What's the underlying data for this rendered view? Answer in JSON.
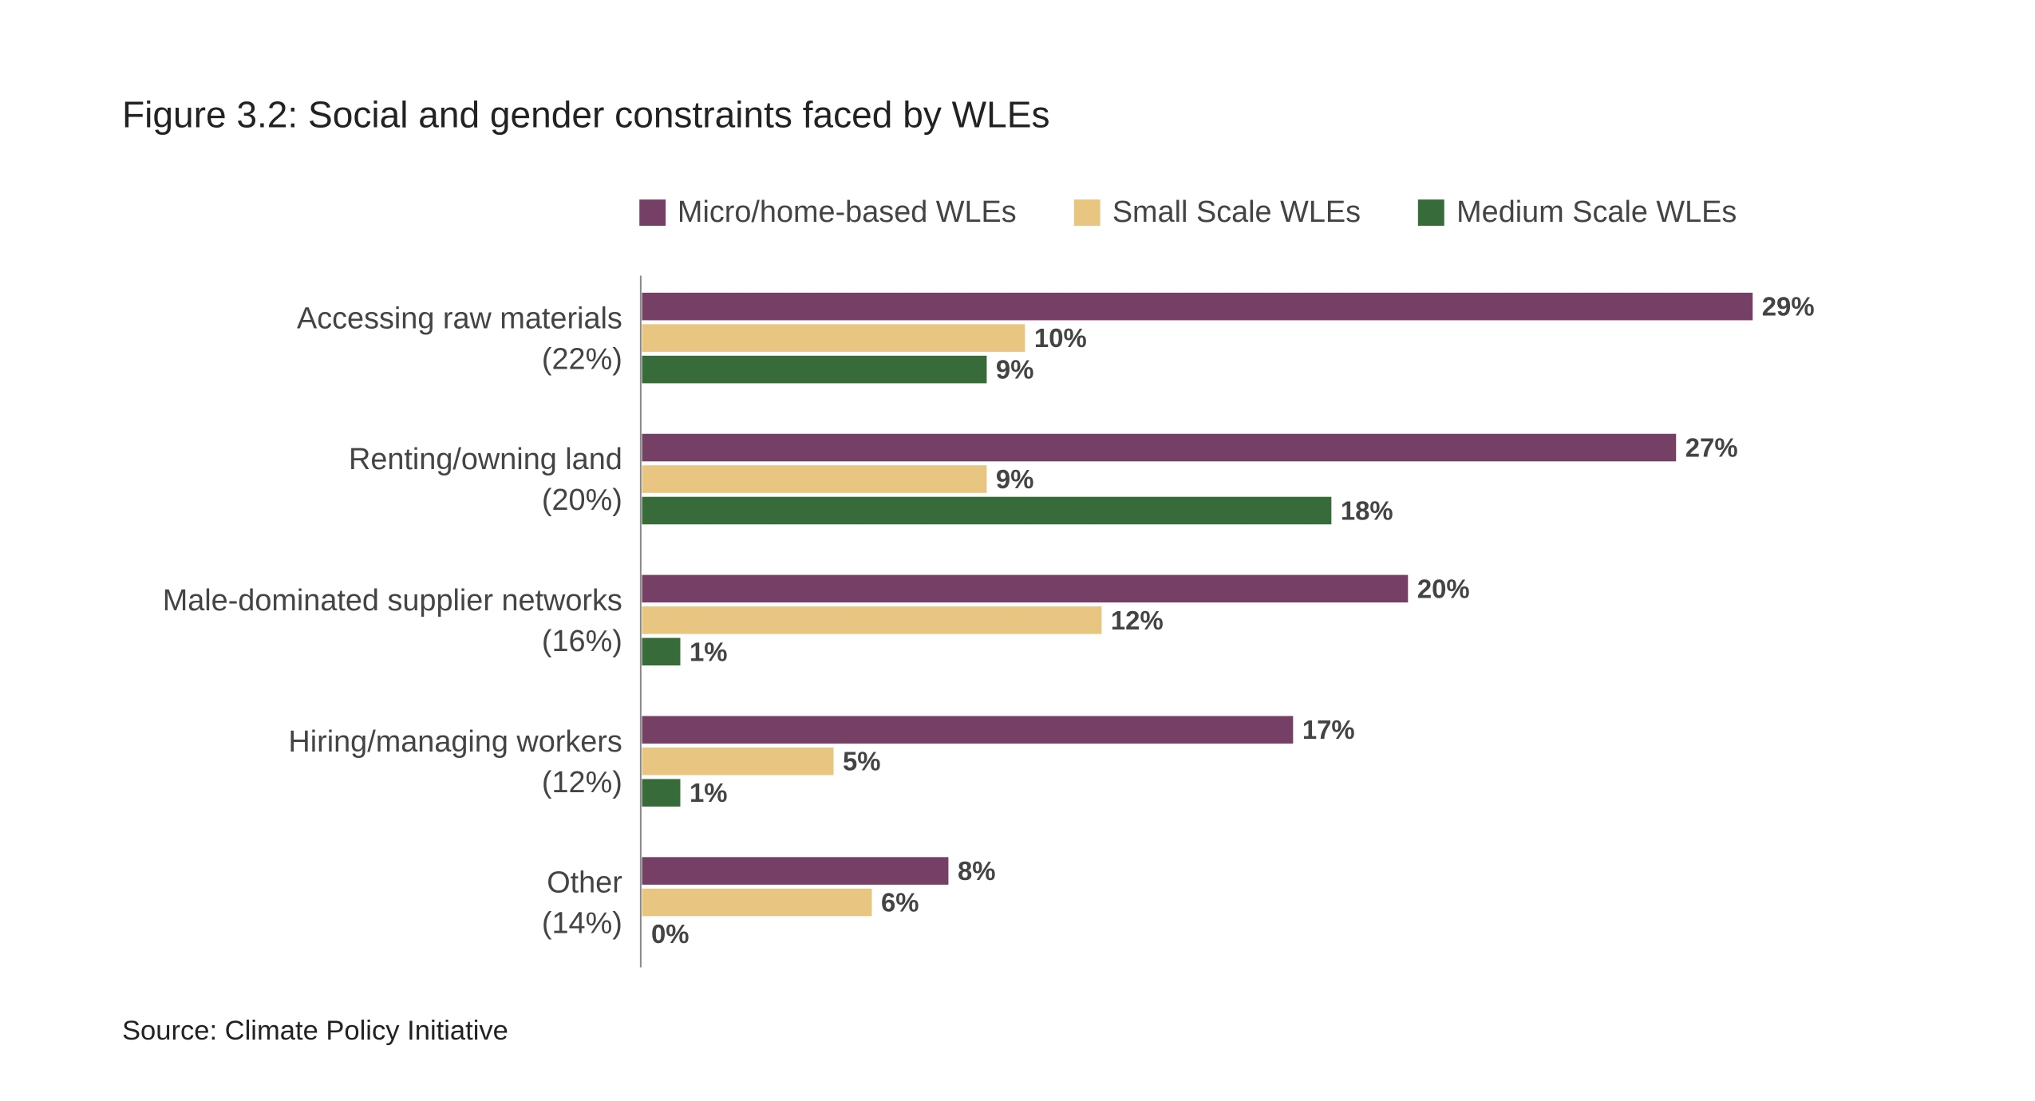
{
  "chart_data": {
    "type": "bar",
    "orientation": "horizontal",
    "title": "Figure 3.2: Social and gender constraints faced by WLEs",
    "source": "Source: Climate Policy Initiative",
    "categories": [
      [
        "Accessing raw materials",
        "(22%)"
      ],
      [
        "Renting/owning land",
        "(20%)"
      ],
      [
        "Male-dominated supplier networks",
        "(16%)"
      ],
      [
        "Hiring/managing workers",
        "(12%)"
      ],
      [
        "Other",
        "(14%)"
      ]
    ],
    "series": [
      {
        "name": "Micro/home-based WLEs",
        "color": "#764066",
        "values": [
          29,
          27,
          20,
          17,
          8
        ]
      },
      {
        "name": "Small Scale WLEs",
        "color": "#E8C581",
        "values": [
          10,
          9,
          12,
          5,
          6
        ]
      },
      {
        "name": "Medium Scale WLEs",
        "color": "#386B3A",
        "values": [
          9,
          18,
          1,
          1,
          0
        ]
      }
    ],
    "value_suffix": "%",
    "xlim": [
      0,
      30
    ],
    "grid": false,
    "legend_position": "top"
  }
}
